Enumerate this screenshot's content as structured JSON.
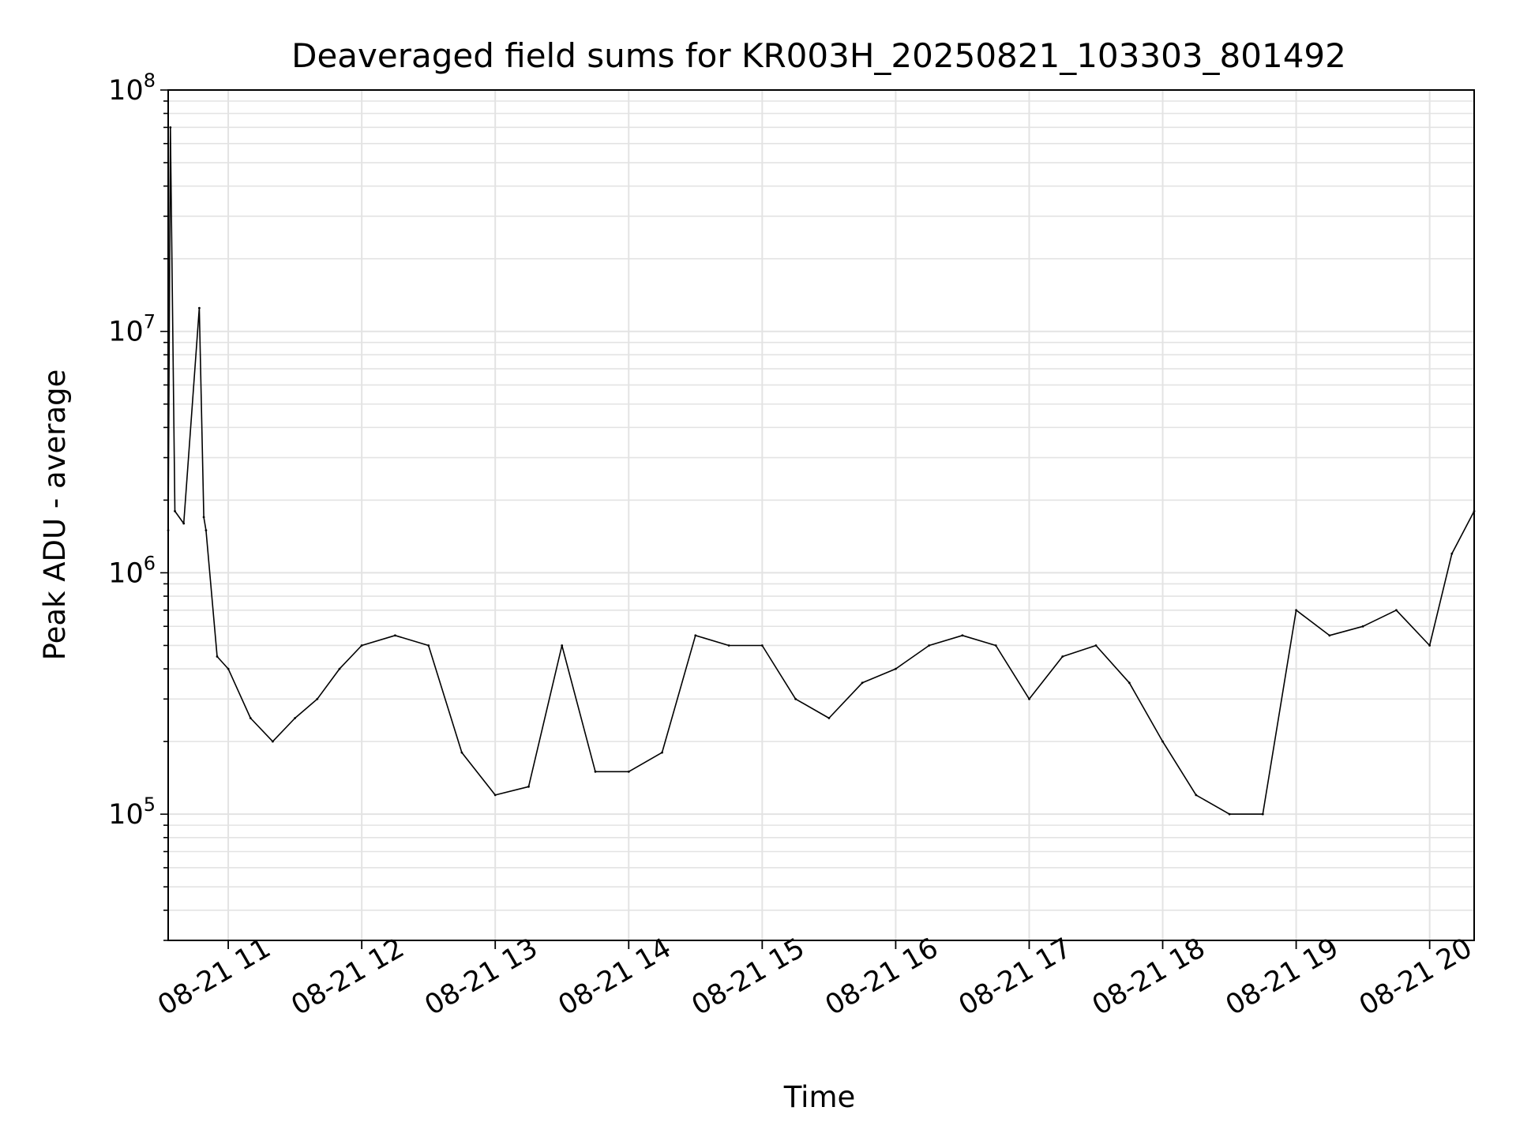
{
  "chart_data": {
    "type": "line",
    "title": "Deaveraged field sums for KR003H_20250821_103303_801492",
    "xlabel": "Time",
    "ylabel": "Peak ADU - average",
    "yscale": "log",
    "ylim": [
      30000,
      100000000
    ],
    "xlim": [
      "2025-08-21 10:33",
      "2025-08-21 20:20"
    ],
    "grid": true,
    "x_tick_labels": [
      "08-21 11",
      "08-21 12",
      "08-21 13",
      "08-21 14",
      "08-21 15",
      "08-21 16",
      "08-21 17",
      "08-21 18",
      "08-21 19",
      "08-21 20"
    ],
    "y_tick_labels": [
      {
        "base": "10",
        "exp": "5"
      },
      {
        "base": "10",
        "exp": "6"
      },
      {
        "base": "10",
        "exp": "7"
      },
      {
        "base": "10",
        "exp": "8"
      }
    ],
    "series_color": "#000000",
    "series": [
      {
        "x": [
          "2025-08-21 10:33",
          "2025-08-21 10:34",
          "2025-08-21 10:36",
          "2025-08-21 10:40",
          "2025-08-21 10:47",
          "2025-08-21 10:49",
          "2025-08-21 10:50",
          "2025-08-21 10:55",
          "2025-08-21 11:00",
          "2025-08-21 11:10",
          "2025-08-21 11:20",
          "2025-08-21 11:30",
          "2025-08-21 11:40",
          "2025-08-21 11:50",
          "2025-08-21 12:00",
          "2025-08-21 12:15",
          "2025-08-21 12:30",
          "2025-08-21 12:45",
          "2025-08-21 13:00",
          "2025-08-21 13:15",
          "2025-08-21 13:30",
          "2025-08-21 13:45",
          "2025-08-21 14:00",
          "2025-08-21 14:15",
          "2025-08-21 14:30",
          "2025-08-21 14:45",
          "2025-08-21 15:00",
          "2025-08-21 15:15",
          "2025-08-21 15:30",
          "2025-08-21 15:45",
          "2025-08-21 16:00",
          "2025-08-21 16:15",
          "2025-08-21 16:30",
          "2025-08-21 16:45",
          "2025-08-21 17:00",
          "2025-08-21 17:15",
          "2025-08-21 17:30",
          "2025-08-21 17:45",
          "2025-08-21 18:00",
          "2025-08-21 18:15",
          "2025-08-21 18:30",
          "2025-08-21 18:45",
          "2025-08-21 19:00",
          "2025-08-21 19:15",
          "2025-08-21 19:30",
          "2025-08-21 19:45",
          "2025-08-21 20:00",
          "2025-08-21 20:10",
          "2025-08-21 20:20"
        ],
        "values": [
          1500000,
          70000000,
          1800000,
          1600000,
          12500000,
          1700000,
          1500000,
          450000,
          400000,
          250000,
          200000,
          250000,
          300000,
          400000,
          500000,
          550000,
          500000,
          180000,
          120000,
          130000,
          500000,
          150000,
          150000,
          180000,
          550000,
          500000,
          500000,
          300000,
          250000,
          350000,
          400000,
          500000,
          550000,
          500000,
          300000,
          450000,
          500000,
          350000,
          200000,
          120000,
          100000,
          100000,
          700000,
          550000,
          600000,
          700000,
          500000,
          1200000,
          1800000
        ]
      }
    ]
  }
}
